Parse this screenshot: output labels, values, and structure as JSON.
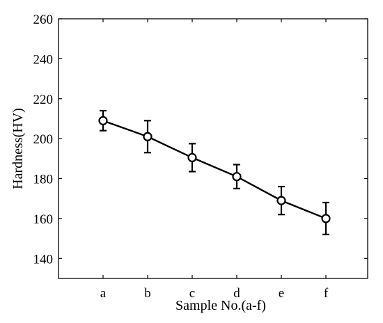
{
  "chart_data": {
    "type": "line",
    "title": "",
    "xlabel": "Sample No.(a-f)",
    "ylabel": "Hardness(HV)",
    "categories": [
      "a",
      "b",
      "c",
      "d",
      "e",
      "f"
    ],
    "series": [
      {
        "values": [
          209,
          201,
          190.5,
          181,
          169,
          160
        ],
        "error": [
          5,
          8,
          7,
          6,
          7,
          8
        ],
        "marker": "open-circle",
        "color": "#000000"
      }
    ],
    "ylim": [
      130,
      260
    ],
    "yticks": [
      140,
      160,
      180,
      200,
      220,
      240,
      260
    ],
    "grid": false,
    "legend": "none"
  }
}
